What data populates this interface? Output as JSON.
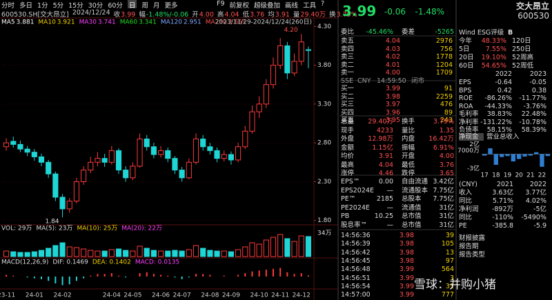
{
  "toolbar": {
    "tabs": [
      "分时",
      "多日",
      "1分",
      "5分",
      "15分",
      "30分",
      "60分",
      "日",
      "周",
      "月",
      "更多"
    ],
    "tools": [
      "F9",
      "前复权",
      "超级叠加",
      "画线",
      "工具",
      "?"
    ]
  },
  "quote_bar": {
    "code": "600530.SH[交大昂立]",
    "date": "2024/12/24",
    "items": [
      [
        "收",
        "3.99"
      ],
      [
        "幅",
        "-1.48%/-0.06"
      ],
      [
        "开",
        "4.00"
      ],
      [
        "高",
        "4.04"
      ],
      [
        "低",
        "3.76"
      ],
      [
        "均",
        "3.91"
      ],
      [
        "量",
        "29.40万"
      ],
      [
        "换",
        "3.79%"
      ]
    ]
  },
  "chart_data": {
    "type": "candlestick",
    "ma_legend": [
      {
        "name": "MA5",
        "value": 3.881,
        "color": "#ffffff"
      },
      {
        "name": "MA10",
        "value": 3.921,
        "color": "#f5d300"
      },
      {
        "name": "MA30",
        "value": 3.741,
        "color": "#ff40ff"
      },
      {
        "name": "MA60",
        "value": 3.341,
        "color": "#22dd22"
      },
      {
        "name": "MA120",
        "value": 2.951,
        "color": "#7fa8ff"
      },
      {
        "name": "MA250",
        "value": 2.661,
        "color": "#ff5050"
      }
    ],
    "range_label": "2023/11/29-2024/12/24(260日)",
    "categories": [
      "23-11",
      null,
      null,
      null,
      "24-01",
      null,
      null,
      null,
      "24-02",
      null,
      null,
      null,
      null,
      null,
      null,
      "24-04",
      null,
      null,
      "24-05",
      null,
      null,
      null,
      "24-06",
      null,
      null,
      "24-07",
      null,
      null,
      null,
      "24-08",
      null,
      null,
      "24-09",
      null,
      null,
      null,
      "24-10",
      null,
      null,
      "24-11",
      null,
      null,
      "24-12",
      null
    ],
    "open": [
      2.75,
      2.82,
      2.78,
      2.72,
      2.68,
      2.62,
      2.55,
      2.4,
      2.1,
      1.95,
      2.05,
      2.3,
      2.45,
      2.55,
      2.6,
      2.55,
      2.7,
      2.45,
      2.35,
      2.5,
      2.85,
      2.75,
      2.65,
      2.7,
      2.6,
      2.45,
      2.35,
      2.55,
      2.85,
      2.75,
      2.7,
      2.6,
      2.65,
      2.58,
      2.75,
      2.95,
      3.2,
      3.3,
      3.55,
      3.8,
      4.05,
      3.7,
      3.85,
      4.0
    ],
    "high": [
      2.86,
      2.88,
      2.83,
      2.76,
      2.72,
      2.66,
      2.58,
      2.43,
      2.14,
      2.09,
      2.35,
      2.5,
      2.62,
      2.68,
      2.66,
      2.76,
      2.73,
      2.5,
      2.55,
      2.92,
      2.9,
      2.8,
      2.76,
      2.74,
      2.63,
      2.49,
      2.6,
      2.92,
      2.9,
      2.8,
      2.74,
      2.7,
      2.69,
      2.8,
      3.02,
      3.28,
      3.4,
      3.62,
      3.9,
      4.15,
      4.1,
      3.95,
      4.2,
      4.04
    ],
    "low": [
      2.7,
      2.74,
      2.68,
      2.63,
      2.57,
      2.5,
      2.35,
      2.05,
      1.84,
      1.9,
      2.02,
      2.26,
      2.41,
      2.5,
      2.49,
      2.52,
      2.4,
      2.3,
      2.32,
      2.48,
      2.7,
      2.6,
      2.61,
      2.55,
      2.4,
      2.3,
      2.33,
      2.52,
      2.7,
      2.65,
      2.55,
      2.56,
      2.52,
      2.55,
      2.72,
      2.92,
      3.12,
      3.25,
      3.5,
      3.75,
      3.62,
      3.66,
      3.8,
      3.76
    ],
    "close": [
      2.8,
      2.78,
      2.72,
      2.68,
      2.62,
      2.55,
      2.4,
      2.1,
      1.95,
      2.05,
      2.3,
      2.45,
      2.55,
      2.6,
      2.55,
      2.7,
      2.45,
      2.35,
      2.5,
      2.85,
      2.75,
      2.65,
      2.7,
      2.6,
      2.45,
      2.35,
      2.55,
      2.85,
      2.75,
      2.7,
      2.6,
      2.65,
      2.58,
      2.75,
      2.95,
      3.2,
      3.3,
      3.55,
      3.8,
      4.05,
      3.7,
      3.85,
      4.1,
      3.99
    ],
    "ylim": [
      1.78,
      4.32
    ],
    "yticks": [
      {
        "value": 1.8,
        "label": "1.80"
      },
      {
        "value": 2.3,
        "label": "2.30"
      },
      {
        "value": 2.8,
        "label": "2.80"
      },
      {
        "value": 3.3,
        "label": "3.30"
      },
      {
        "value": 3.8,
        "label": "3.80"
      },
      {
        "value": 4.3,
        "label": "4.30"
      }
    ],
    "grid": true,
    "up_color": "#ff3b3b",
    "down_color": "#1fd6d6",
    "annotations": [
      {
        "x": 42,
        "value": 4.2,
        "label": "4.20"
      },
      {
        "x": 8,
        "value": 1.84,
        "label": "1.84"
      }
    ],
    "volume": {
      "legend": [
        {
          "text": "VOL: 29万",
          "color": "#dddddd"
        },
        {
          "text": "MA(5): 23万",
          "color": "#dddddd"
        },
        {
          "text": "MA(10): 25万",
          "color": "#f5d300"
        },
        {
          "text": "MA(20): 22万",
          "color": "#ff40ff"
        }
      ],
      "values": [
        8,
        7,
        6,
        6,
        7,
        9,
        12,
        16,
        20,
        14,
        13,
        11,
        9,
        8,
        8,
        10,
        11,
        9,
        8,
        15,
        12,
        9,
        8,
        8,
        9,
        8,
        10,
        16,
        12,
        9,
        8,
        8,
        7,
        10,
        14,
        20,
        18,
        24,
        28,
        32,
        26,
        22,
        30,
        29
      ],
      "ylim": [
        0,
        34
      ],
      "yticks": [
        {
          "value": 34,
          "label": "34万"
        }
      ]
    },
    "macd": {
      "legend": [
        {
          "text": "MACD(12,26,9)",
          "color": "#dddddd"
        },
        {
          "text": "DIF: 0.1469",
          "color": "#dddddd"
        },
        {
          "text": "DEA: 0.1402",
          "color": "#f5d300"
        },
        {
          "text": "MACD: 0.0135",
          "color": "#ff40ff"
        }
      ],
      "values": [
        0.02,
        0.01,
        0,
        -0.01,
        -0.02,
        -0.03,
        -0.05,
        -0.08,
        -0.1,
        -0.09,
        -0.05,
        -0.02,
        0.01,
        0.03,
        0.03,
        0.04,
        0.01,
        -0.01,
        0,
        0.04,
        0.05,
        0.03,
        0.02,
        0.01,
        -0.01,
        -0.03,
        -0.01,
        0.03,
        0.03,
        0.02,
        0,
        0.01,
        0,
        0.02,
        0.04,
        0.06,
        0.07,
        0.08,
        0.09,
        0.1,
        0.05,
        0.03,
        0.04,
        0.0135
      ],
      "ylim": [
        -0.12,
        0.12
      ]
    }
  },
  "order_panel": {
    "quote": [
      "3.99",
      "-0.06",
      "-1.48%"
    ],
    "ratio": [
      [
        "委比",
        "-45.46%",
        "委差",
        "-5265"
      ]
    ],
    "asks": [
      [
        "卖五",
        "4.04",
        "2976"
      ],
      [
        "卖四",
        "4.03",
        "756"
      ],
      [
        "卖三",
        "4.02",
        "1778"
      ],
      [
        "卖二",
        "4.01",
        "1204"
      ],
      [
        "卖一",
        "4.00",
        "1709"
      ]
    ],
    "status": [
      [
        "SSE",
        "CNY",
        "14:59:50",
        "闭市"
      ]
    ],
    "bids": [
      [
        "买一",
        "3.99",
        "91"
      ],
      [
        "买二",
        "3.98",
        "2259"
      ],
      [
        "买三",
        "3.97",
        "476"
      ],
      [
        "买四",
        "3.96",
        "89"
      ],
      [
        "买五",
        "3.95",
        "243"
      ]
    ],
    "stats": [
      [
        "总量",
        "29.40万",
        "换手",
        "3.79%"
      ],
      [
        "现手",
        "4233",
        "量比",
        "1.35"
      ],
      [
        "外盘",
        "12.98万",
        "内盘",
        "16.42万"
      ],
      [
        "金额",
        "1.15亿",
        "振幅",
        "6.91%"
      ],
      [
        "均价",
        "3.91",
        "开盘",
        "4.00"
      ],
      [
        "最高",
        "4.04",
        "最低",
        "3.76"
      ],
      [
        "涨停",
        "4.46",
        "跌停",
        "3.65"
      ]
    ],
    "fundamentals": [
      [
        "EPS™",
        "0.00",
        "自由流通",
        "3.42亿"
      ],
      [
        "EPS2024E",
        "—",
        "流通股本",
        "7.75亿"
      ],
      [
        "PE™",
        "2185",
        "总股本",
        "7.75亿"
      ],
      [
        "PE2024E",
        "—",
        "流通值",
        "31亿"
      ],
      [
        "PB",
        "10.25",
        "总市值",
        "31亿"
      ],
      [
        "股息率™",
        "—",
        "总市值",
        "31亿"
      ]
    ],
    "trades": [
      [
        "14:56:36",
        "3.98",
        "39"
      ],
      [
        "14:56:39",
        "3.98",
        "105"
      ],
      [
        "14:56:42",
        "3.98",
        "13"
      ],
      [
        "14:56:45",
        "3.98",
        "97"
      ],
      [
        "14:56:48",
        "3.99",
        "564"
      ],
      [
        "14:56:51",
        "3.99",
        "3"
      ],
      [
        "14:56:54",
        "3.99",
        "31"
      ],
      [
        "14:57:00",
        "3.99",
        "777"
      ]
    ]
  },
  "info_panel": {
    "name": "交大昂立",
    "code": "600530",
    "esg": [
      "Wind ESG评级",
      "B"
    ],
    "returns": [
      [
        "今年",
        "48.33%",
        "120日"
      ],
      [
        "5日",
        "7.55%",
        "250日"
      ],
      [
        "20日",
        "19.10%",
        "52周高"
      ],
      [
        "60日",
        "54.65%",
        "52周低"
      ]
    ],
    "fin_header": [
      [
        "2022",
        "2023"
      ]
    ],
    "fin_rows": [
      [
        "EPS",
        "-0.64",
        "-0.05"
      ],
      [
        "BPS",
        "0.42",
        "0.38"
      ],
      [
        "ROE",
        "-86.26%",
        "-11.77%"
      ],
      [
        "ROA",
        "-44.33%",
        "-3.76%"
      ],
      [
        "毛利率",
        "38.83%",
        "22.48%"
      ],
      [
        "净利率",
        "-131.22%",
        "-10.78%"
      ],
      [
        "负债率",
        "58.15%",
        "58.39%"
      ]
    ],
    "cash_chart": {
      "title": [
        "净现金",
        "营业总收入"
      ],
      "categories": [
        "17",
        null,
        "18",
        null,
        "19",
        null,
        "20",
        null,
        "21",
        null,
        "22",
        null
      ],
      "values": [
        -0.3,
        1.2,
        -2.2,
        -0.6,
        -0.4,
        -1.5,
        -1.0,
        -0.5,
        -0.3,
        0.4,
        -2.6,
        -0.4
      ],
      "ylim": [
        -3.2,
        2.2
      ],
      "yticks": [
        {
          "value": 2,
          "label": "2亿"
        },
        {
          "value": 0.7,
          "label": "7000万"
        },
        {
          "value": -3,
          "label": "-3亿"
        }
      ],
      "color": "#2f7fd1"
    },
    "forecast": [
      [
        "(CNY)",
        "2021",
        "2022"
      ],
      [
        "收入",
        "3.63亿",
        "3.77亿"
      ],
      [
        "同比",
        "5.71%",
        "4.02%"
      ],
      [
        "净利润",
        "-892万",
        "-5亿"
      ],
      [
        "同比",
        "-110%",
        "-5490%"
      ],
      [
        "PE",
        "-385.8",
        "-5.9"
      ]
    ],
    "disclosure": [
      [
        "财报披露"
      ],
      [
        "报告期"
      ],
      [
        "报告类型"
      ]
    ]
  },
  "watermark": "雪球：并购小猪"
}
